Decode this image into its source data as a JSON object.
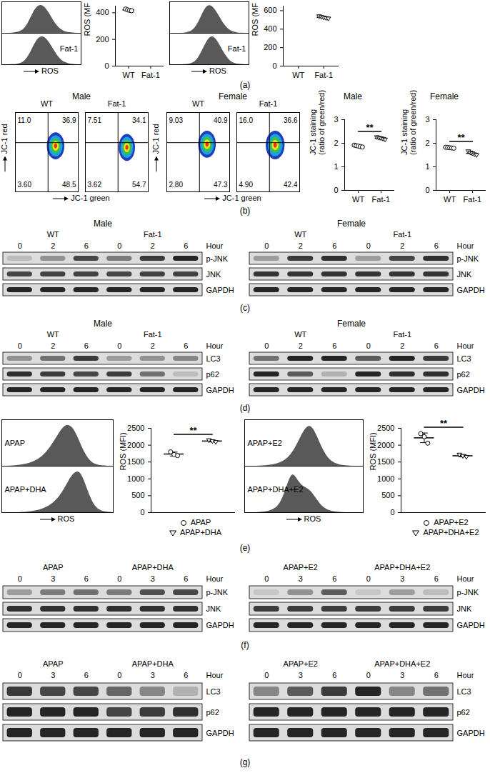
{
  "panel_labels": [
    "(a)",
    "(b)",
    "(c)",
    "(d)",
    "(e)",
    "(f)",
    "(g)"
  ],
  "chart_data": [
    {
      "type": "histogram",
      "xlabel": "ROS",
      "tick_labels": false,
      "color": "#595959",
      "x": [
        0,
        5,
        10,
        15,
        20,
        25,
        30,
        35,
        40,
        45,
        50,
        55,
        60,
        65,
        70,
        75,
        80,
        85,
        90,
        95,
        100
      ],
      "xlim": [
        0,
        100
      ],
      "ylim": [
        0,
        110
      ],
      "series": [
        {
          "name": null,
          "values": [
            0,
            0,
            0,
            1,
            3,
            8,
            20,
            45,
            75,
            95,
            100,
            90,
            70,
            45,
            25,
            12,
            5,
            2,
            1,
            0,
            0
          ]
        },
        {
          "name": "Fat-1",
          "values": [
            0,
            0,
            0,
            0,
            2,
            5,
            15,
            35,
            65,
            90,
            100,
            95,
            78,
            55,
            32,
            16,
            7,
            3,
            1,
            0,
            0
          ]
        }
      ]
    },
    {
      "type": "scatter",
      "ylabel": "ROS (MF",
      "ylim": [
        0,
        450
      ],
      "yticks": [
        0,
        200,
        400
      ],
      "series": [
        {
          "name": "WT",
          "marker": "circle",
          "values": [
            428,
            422,
            418,
            415
          ],
          "mean": 421,
          "sd": 5
        },
        {
          "name": "Fat-1",
          "marker": "triangle-down",
          "values": [],
          "mean": null,
          "sd": null
        }
      ]
    },
    {
      "type": "histogram",
      "xlabel": "ROS",
      "tick_labels": false,
      "color": "#595959",
      "x": [
        0,
        5,
        10,
        15,
        20,
        25,
        30,
        35,
        40,
        45,
        50,
        55,
        60,
        65,
        70,
        75,
        80,
        85,
        90,
        95,
        100
      ],
      "xlim": [
        0,
        100
      ],
      "ylim": [
        0,
        110
      ],
      "series": [
        {
          "name": null,
          "values": [
            0,
            0,
            0,
            0,
            1,
            4,
            12,
            30,
            60,
            88,
            100,
            92,
            72,
            48,
            26,
            12,
            5,
            2,
            0,
            0,
            0
          ]
        },
        {
          "name": "Fat-1",
          "values": [
            0,
            0,
            0,
            0,
            0,
            2,
            6,
            18,
            42,
            72,
            95,
            100,
            85,
            60,
            35,
            16,
            6,
            2,
            1,
            0,
            0
          ]
        }
      ]
    },
    {
      "type": "scatter",
      "ylabel": "ROS (MF",
      "ylim": [
        0,
        650
      ],
      "yticks": [
        0,
        200,
        400,
        600
      ],
      "series": [
        {
          "name": "WT",
          "marker": "circle",
          "values": [],
          "mean": null,
          "sd": null
        },
        {
          "name": "Fat-1",
          "marker": "triangle-down",
          "values": [
            540,
            532,
            526,
            520,
            515
          ],
          "mean": 527,
          "sd": 9
        }
      ]
    },
    {
      "type": "flow_density",
      "title": "Male",
      "xlabel": "JC-1 green",
      "ylabel": "JC-1 red",
      "tick_labels": false,
      "xlim": [
        0,
        100
      ],
      "ylim": [
        0,
        100
      ],
      "panels": [
        {
          "name": "WT",
          "values": [
            11.0,
            36.9,
            3.6,
            48.5
          ],
          "value_labels": [
            "11.0",
            "36.9",
            "3.60",
            "48.5"
          ],
          "gate": [
            52,
            62
          ],
          "cloud": {
            "center": [
              64,
              58
            ],
            "spread": [
              14,
              17
            ]
          }
        },
        {
          "name": "Fat-1",
          "values": [
            7.51,
            34.1,
            3.62,
            54.7
          ],
          "value_labels": [
            "7.51",
            "34.1",
            "3.62",
            "54.7"
          ],
          "gate": [
            52,
            62
          ],
          "cloud": {
            "center": [
              66,
              56
            ],
            "spread": [
              13,
              17
            ]
          }
        }
      ]
    },
    {
      "type": "flow_density",
      "title": "Female",
      "xlabel": "JC-1 green",
      "ylabel": "JC-1 red",
      "tick_labels": false,
      "xlim": [
        0,
        100
      ],
      "ylim": [
        0,
        100
      ],
      "panels": [
        {
          "name": "WT",
          "values": [
            9.03,
            40.9,
            2.8,
            47.3
          ],
          "value_labels": [
            "9.03",
            "40.9",
            "2.80",
            "47.3"
          ],
          "gate": [
            52,
            62
          ],
          "cloud": {
            "center": [
              64,
              60
            ],
            "spread": [
              14,
              17
            ]
          }
        },
        {
          "name": "Fat-1",
          "values": [
            16.0,
            36.6,
            4.9,
            42.4
          ],
          "value_labels": [
            "16.0",
            "36.6",
            "4.90",
            "42.4"
          ],
          "gate": [
            52,
            62
          ],
          "cloud": {
            "center": [
              61,
              59
            ],
            "spread": [
              15,
              18
            ]
          }
        }
      ]
    },
    {
      "type": "scatter",
      "title": "Male",
      "ylabel": "JC-1 staining\n(ratio of green/red)",
      "ylim": [
        0,
        3
      ],
      "yticks": [
        0,
        1,
        2,
        3
      ],
      "significance": "**",
      "series": [
        {
          "name": "WT",
          "marker": "circle",
          "values": [
            1.92,
            1.9,
            1.88,
            1.86,
            1.84
          ],
          "mean": 1.88,
          "sd": 0.03
        },
        {
          "name": "Fat-1",
          "marker": "triangle-down",
          "values": [
            2.26,
            2.23,
            2.21,
            2.19,
            2.16
          ],
          "mean": 2.21,
          "sd": 0.04
        }
      ]
    },
    {
      "type": "scatter",
      "title": "Female",
      "ylabel": "JC-1 staining\n(ratio of green/red)",
      "ylim": [
        0,
        3
      ],
      "yticks": [
        0,
        1,
        2,
        3
      ],
      "significance": "**",
      "series": [
        {
          "name": "WT",
          "marker": "circle",
          "values": [
            1.83,
            1.82,
            1.81,
            1.8,
            1.79
          ],
          "mean": 1.81,
          "sd": 0.02
        },
        {
          "name": "Fat-1",
          "marker": "triangle-down",
          "values": [
            1.66,
            1.61,
            1.57,
            1.53,
            1.5
          ],
          "mean": 1.57,
          "sd": 0.06
        }
      ]
    },
    {
      "type": "blot",
      "title": "Male",
      "groups": [
        "WT",
        "Fat-1"
      ],
      "lanes": [
        0,
        2,
        6
      ],
      "lane_label": "Hour",
      "rows": [
        {
          "name": "p-JNK",
          "values": [
            0.15,
            0.35,
            0.7,
            0.45,
            0.75,
            0.85
          ]
        },
        {
          "name": "JNK",
          "values": [
            0.7,
            0.72,
            0.72,
            0.7,
            0.72,
            0.72
          ]
        },
        {
          "name": "GAPDH",
          "values": [
            0.85,
            0.85,
            0.85,
            0.85,
            0.85,
            0.85
          ]
        }
      ]
    },
    {
      "type": "blot",
      "title": "Female",
      "groups": [
        "WT",
        "Fat-1"
      ],
      "lanes": [
        0,
        2,
        6
      ],
      "lane_label": "Hour",
      "rows": [
        {
          "name": "p-JNK",
          "values": [
            0.3,
            0.75,
            0.8,
            0.3,
            0.7,
            0.8
          ]
        },
        {
          "name": "JNK",
          "values": [
            0.78,
            0.78,
            0.78,
            0.78,
            0.78,
            0.78
          ]
        },
        {
          "name": "GAPDH",
          "values": [
            0.85,
            0.85,
            0.85,
            0.85,
            0.85,
            0.85
          ]
        }
      ]
    },
    {
      "type": "blot",
      "title": "Male",
      "groups": [
        "WT",
        "Fat-1"
      ],
      "lanes": [
        0,
        2,
        6
      ],
      "lane_label": "Hour",
      "rows": [
        {
          "name": "LC3",
          "values": [
            0.35,
            0.5,
            0.75,
            0.3,
            0.35,
            0.4
          ]
        },
        {
          "name": "p62",
          "values": [
            0.8,
            0.75,
            0.7,
            0.75,
            0.5,
            0.15
          ]
        },
        {
          "name": "GAPDH",
          "values": [
            0.85,
            0.85,
            0.85,
            0.85,
            0.85,
            0.85
          ]
        }
      ]
    },
    {
      "type": "blot",
      "title": "Female",
      "groups": [
        "WT",
        "Fat-1"
      ],
      "lanes": [
        0,
        2,
        6
      ],
      "lane_label": "Hour",
      "rows": [
        {
          "name": "LC3",
          "values": [
            0.5,
            0.85,
            0.85,
            0.6,
            0.85,
            0.75
          ]
        },
        {
          "name": "p62",
          "values": [
            0.85,
            0.6,
            0.2,
            0.85,
            0.8,
            0.8
          ]
        },
        {
          "name": "GAPDH",
          "values": [
            0.85,
            0.85,
            0.85,
            0.85,
            0.85,
            0.85
          ]
        }
      ]
    },
    {
      "type": "histogram",
      "xlabel": "ROS",
      "tick_labels": false,
      "color": "#595959",
      "x": [
        0,
        5,
        10,
        15,
        20,
        25,
        30,
        35,
        40,
        45,
        50,
        55,
        60,
        65,
        70,
        75,
        80,
        85,
        90,
        95,
        100
      ],
      "xlim": [
        0,
        100
      ],
      "ylim": [
        0,
        110
      ],
      "series": [
        {
          "name": "APAP",
          "values": [
            0,
            0,
            1,
            2,
            4,
            7,
            12,
            20,
            32,
            50,
            72,
            92,
            100,
            88,
            58,
            28,
            10,
            3,
            1,
            0,
            0
          ]
        },
        {
          "name": "APAP+DHA",
          "values": [
            0,
            0,
            0,
            0,
            1,
            2,
            4,
            7,
            12,
            20,
            32,
            50,
            75,
            95,
            100,
            70,
            32,
            10,
            3,
            1,
            0
          ]
        }
      ]
    },
    {
      "type": "scatter",
      "ylabel": "ROS (MFI)",
      "ylim": [
        0,
        2500
      ],
      "yticks": [
        0,
        500,
        1000,
        1500,
        2000,
        2500
      ],
      "significance": "**",
      "tick_labels": "y",
      "legend": "bottom",
      "series": [
        {
          "name": "APAP",
          "marker": "circle",
          "values": [
            1800,
            1720,
            1690
          ],
          "mean": 1737,
          "sd": 57
        },
        {
          "name": "APAP+DHA",
          "marker": "triangle-down",
          "values": [
            2150,
            2120,
            2095
          ],
          "mean": 2122,
          "sd": 28
        }
      ]
    },
    {
      "type": "histogram",
      "xlabel": "ROS",
      "tick_labels": false,
      "color": "#595959",
      "x": [
        0,
        5,
        10,
        15,
        20,
        25,
        30,
        35,
        40,
        45,
        50,
        55,
        60,
        65,
        70,
        75,
        80,
        85,
        90,
        95,
        100
      ],
      "xlim": [
        0,
        100
      ],
      "ylim": [
        0,
        110
      ],
      "series": [
        {
          "name": "APAP+E2",
          "values": [
            0,
            0,
            0,
            1,
            2,
            4,
            8,
            15,
            30,
            55,
            85,
            100,
            80,
            45,
            20,
            8,
            3,
            1,
            0,
            0,
            0
          ]
        },
        {
          "name": "APAP+DHA+E2",
          "values": [
            0,
            0,
            0,
            1,
            3,
            8,
            20,
            55,
            100,
            75,
            60,
            55,
            35,
            15,
            6,
            2,
            1,
            0,
            0,
            0,
            0
          ]
        }
      ]
    },
    {
      "type": "scatter",
      "ylabel": "ROS (MFI)",
      "ylim": [
        0,
        2500
      ],
      "yticks": [
        0,
        500,
        1000,
        1500,
        2000,
        2500
      ],
      "significance": "**",
      "tick_labels": "y",
      "legend": "bottom",
      "series": [
        {
          "name": "APAP+E2",
          "marker": "circle",
          "values": [
            2340,
            2250,
            2060
          ],
          "mean": 2217,
          "sd": 143
        },
        {
          "name": "APAP+DHA+E2",
          "marker": "triangle-down",
          "values": [
            1720,
            1680,
            1655
          ],
          "mean": 1685,
          "sd": 33
        }
      ]
    },
    {
      "type": "blot",
      "groups": [
        "APAP",
        "APAP+DHA"
      ],
      "lanes": [
        0,
        3,
        6
      ],
      "lane_label": "Hour",
      "rows": [
        {
          "name": "p-JNK",
          "values": [
            0.3,
            0.45,
            0.5,
            0.45,
            0.65,
            0.7
          ]
        },
        {
          "name": "JNK",
          "values": [
            0.8,
            0.8,
            0.8,
            0.8,
            0.8,
            0.8
          ]
        },
        {
          "name": "GAPDH",
          "values": [
            0.85,
            0.85,
            0.85,
            0.85,
            0.85,
            0.85
          ]
        }
      ]
    },
    {
      "type": "blot",
      "groups": [
        "APAP+E2",
        "APAP+DHA+E2"
      ],
      "lanes": [
        0,
        3,
        6
      ],
      "lane_label": "Hour",
      "rows": [
        {
          "name": "p-JNK",
          "values": [
            0.1,
            0.35,
            0.6,
            0.1,
            0.3,
            0.15
          ]
        },
        {
          "name": "JNK",
          "values": [
            0.75,
            0.75,
            0.75,
            0.75,
            0.75,
            0.75
          ]
        },
        {
          "name": "GAPDH",
          "values": [
            0.85,
            0.85,
            0.85,
            0.85,
            0.85,
            0.85
          ]
        }
      ]
    },
    {
      "type": "blot",
      "groups": [
        "APAP",
        "APAP+DHA"
      ],
      "lanes": [
        0,
        3,
        6
      ],
      "lane_label": "Hour",
      "rows": [
        {
          "name": "LC3",
          "values": [
            0.75,
            0.7,
            0.7,
            0.55,
            0.4,
            0.2
          ]
        },
        {
          "name": "p62",
          "values": [
            0.85,
            0.85,
            0.85,
            0.7,
            0.75,
            0.8
          ]
        },
        {
          "name": "GAPDH",
          "values": [
            0.85,
            0.85,
            0.85,
            0.85,
            0.85,
            0.85
          ]
        }
      ]
    },
    {
      "type": "blot",
      "groups": [
        "APAP+E2",
        "APAP+DHA+E2"
      ],
      "lanes": [
        0,
        3,
        6
      ],
      "lane_label": "Hour",
      "rows": [
        {
          "name": "LC3",
          "values": [
            0.4,
            0.6,
            0.75,
            0.85,
            0.4,
            0.5
          ]
        },
        {
          "name": "p62",
          "values": [
            0.85,
            0.85,
            0.85,
            0.85,
            0.85,
            0.85
          ]
        },
        {
          "name": "GAPDH",
          "values": [
            0.85,
            0.85,
            0.85,
            0.85,
            0.85,
            0.85
          ]
        }
      ]
    }
  ]
}
